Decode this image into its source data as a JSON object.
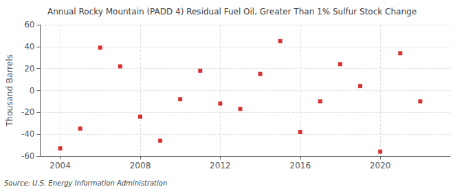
{
  "chart_data": {
    "type": "scatter",
    "title": "Annual Rocky Mountain (PADD 4) Residual Fuel Oil, Greater Than 1% Sulfur Stock Change",
    "ylabel": "Thousand Barrels",
    "annotation": "Source: U.S. Energy Information Administration",
    "x": [
      2004,
      2005,
      2006,
      2007,
      2008,
      2009,
      2010,
      2011,
      2012,
      2013,
      2014,
      2015,
      2016,
      2017,
      2018,
      2019,
      2020,
      2021,
      2022
    ],
    "values": [
      -53,
      -35,
      39,
      22,
      -24,
      -46,
      -8,
      18,
      -12,
      -17,
      15,
      45,
      -38,
      -10,
      24,
      4,
      -56,
      34,
      -10
    ],
    "color": "#cc0000",
    "marker": "square",
    "xlim": [
      2003.0,
      2023.5
    ],
    "xticks": [
      2004,
      2008,
      2012,
      2016,
      2020
    ],
    "ylim": [
      -60,
      60
    ],
    "yticks": [
      -60,
      -40,
      -20,
      0,
      20,
      40,
      60
    ],
    "grid": true
  }
}
